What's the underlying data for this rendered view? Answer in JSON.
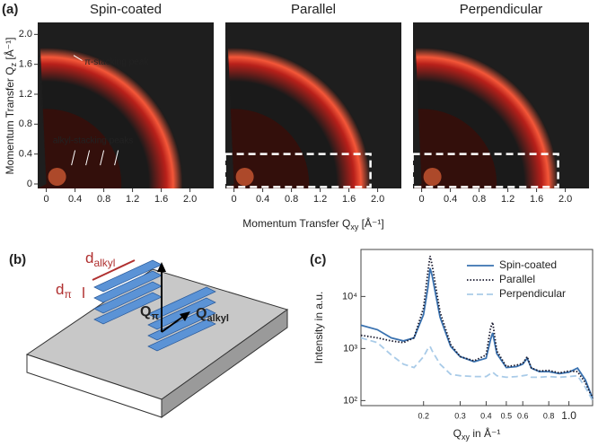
{
  "chart_data": [
    {
      "type": "image",
      "panel": "(a)",
      "title": "Spin-coated",
      "ylabel": {
        "text": "Momentum Transfer Q",
        "sub": "z",
        "unit": " [Å⁻¹]"
      },
      "xlim": [
        -0.12,
        2.33
      ],
      "ylim": [
        -0.06,
        2.16
      ],
      "xticks": [
        0,
        0.4,
        0.8,
        1.2,
        1.6,
        {
          "value": 2,
          "label": "2.0"
        }
      ],
      "yticks": [
        0,
        0.4,
        0.8,
        1.2,
        1.6,
        {
          "value": 2,
          "label": "2.0"
        }
      ],
      "annotations": [
        "π-stacking peak",
        "alkyl-stacking peaks"
      ]
    },
    {
      "type": "image",
      "title": "Parallel",
      "xlabel": {
        "text": "Momentum Transfer Q",
        "sub": "xy",
        "unit": " [Å⁻¹]"
      },
      "xlim": [
        -0.12,
        2.33
      ],
      "ylim": [
        -0.06,
        2.16
      ],
      "xticks": [
        0,
        0.4,
        0.8,
        1.2,
        1.6,
        {
          "value": 2,
          "label": "2.0"
        }
      ]
    },
    {
      "type": "image",
      "title": "Perpendicular",
      "xlim": [
        -0.12,
        2.33
      ],
      "ylim": [
        -0.06,
        2.16
      ],
      "xticks": [
        0,
        0.4,
        0.8,
        1.2,
        1.6,
        {
          "value": 2,
          "label": "2.0"
        }
      ]
    },
    {
      "type": "line",
      "panel": "(c)",
      "xlabel": {
        "text": "Q",
        "sub": "xy",
        "unit": " in Å⁻¹"
      },
      "ylabel": "Intensity in a.u.",
      "log_x": true,
      "log_y": true,
      "legend": "top-right",
      "xlim": [
        0.1,
        1.3
      ],
      "ylim": [
        80,
        80000
      ],
      "xticks": [
        0.2,
        0.3,
        0.4,
        0.5,
        0.6,
        0.8,
        {
          "value": 1,
          "label": "1.0"
        }
      ],
      "yticks": [
        {
          "value": 100,
          "label": "10²"
        },
        {
          "value": 1000,
          "label": "10³"
        },
        {
          "value": 10000,
          "label": "10⁴"
        }
      ],
      "x": [
        0.1,
        0.12,
        0.14,
        0.16,
        0.18,
        0.2,
        0.21,
        0.215,
        0.22,
        0.24,
        0.27,
        0.3,
        0.35,
        0.4,
        0.42,
        0.43,
        0.45,
        0.5,
        0.56,
        0.6,
        0.63,
        0.66,
        0.72,
        0.8,
        0.9,
        1.0,
        1.1,
        1.2,
        1.3
      ],
      "series": [
        {
          "name": "Spin-coated",
          "color": "#3a72b0",
          "dash": "solid",
          "values": [
            2800,
            2300,
            1600,
            1400,
            1600,
            4500,
            15000,
            35000,
            25000,
            4000,
            1100,
            700,
            560,
            650,
            1500,
            2000,
            800,
            430,
            450,
            500,
            650,
            420,
            360,
            360,
            330,
            350,
            420,
            250,
            110
          ]
        },
        {
          "name": "Parallel",
          "color": "#1a1a2e",
          "dash": "dotted",
          "values": [
            1800,
            1600,
            1400,
            1300,
            1600,
            6000,
            30000,
            60000,
            40000,
            5000,
            1200,
            700,
            580,
            750,
            2500,
            3200,
            900,
            450,
            480,
            520,
            700,
            420,
            370,
            380,
            340,
            370,
            360,
            220,
            110
          ]
        },
        {
          "name": "Perpendicular",
          "color": "#a9cbe8",
          "dash": "dashed",
          "values": [
            1600,
            1300,
            750,
            500,
            430,
            700,
            1000,
            1100,
            900,
            500,
            320,
            300,
            290,
            290,
            330,
            350,
            300,
            280,
            290,
            300,
            310,
            280,
            280,
            290,
            280,
            290,
            300,
            180,
            100
          ]
        }
      ]
    }
  ],
  "diagram": {
    "panel": "(b)",
    "d_alkyl": {
      "main": "d",
      "sub": "alkyl"
    },
    "d_pi": {
      "main": "d",
      "sub": "π"
    },
    "q_pi": {
      "main": "Q",
      "sub": "π"
    },
    "q_alkyl": {
      "main": "Q",
      "sub": "alkyl"
    }
  }
}
